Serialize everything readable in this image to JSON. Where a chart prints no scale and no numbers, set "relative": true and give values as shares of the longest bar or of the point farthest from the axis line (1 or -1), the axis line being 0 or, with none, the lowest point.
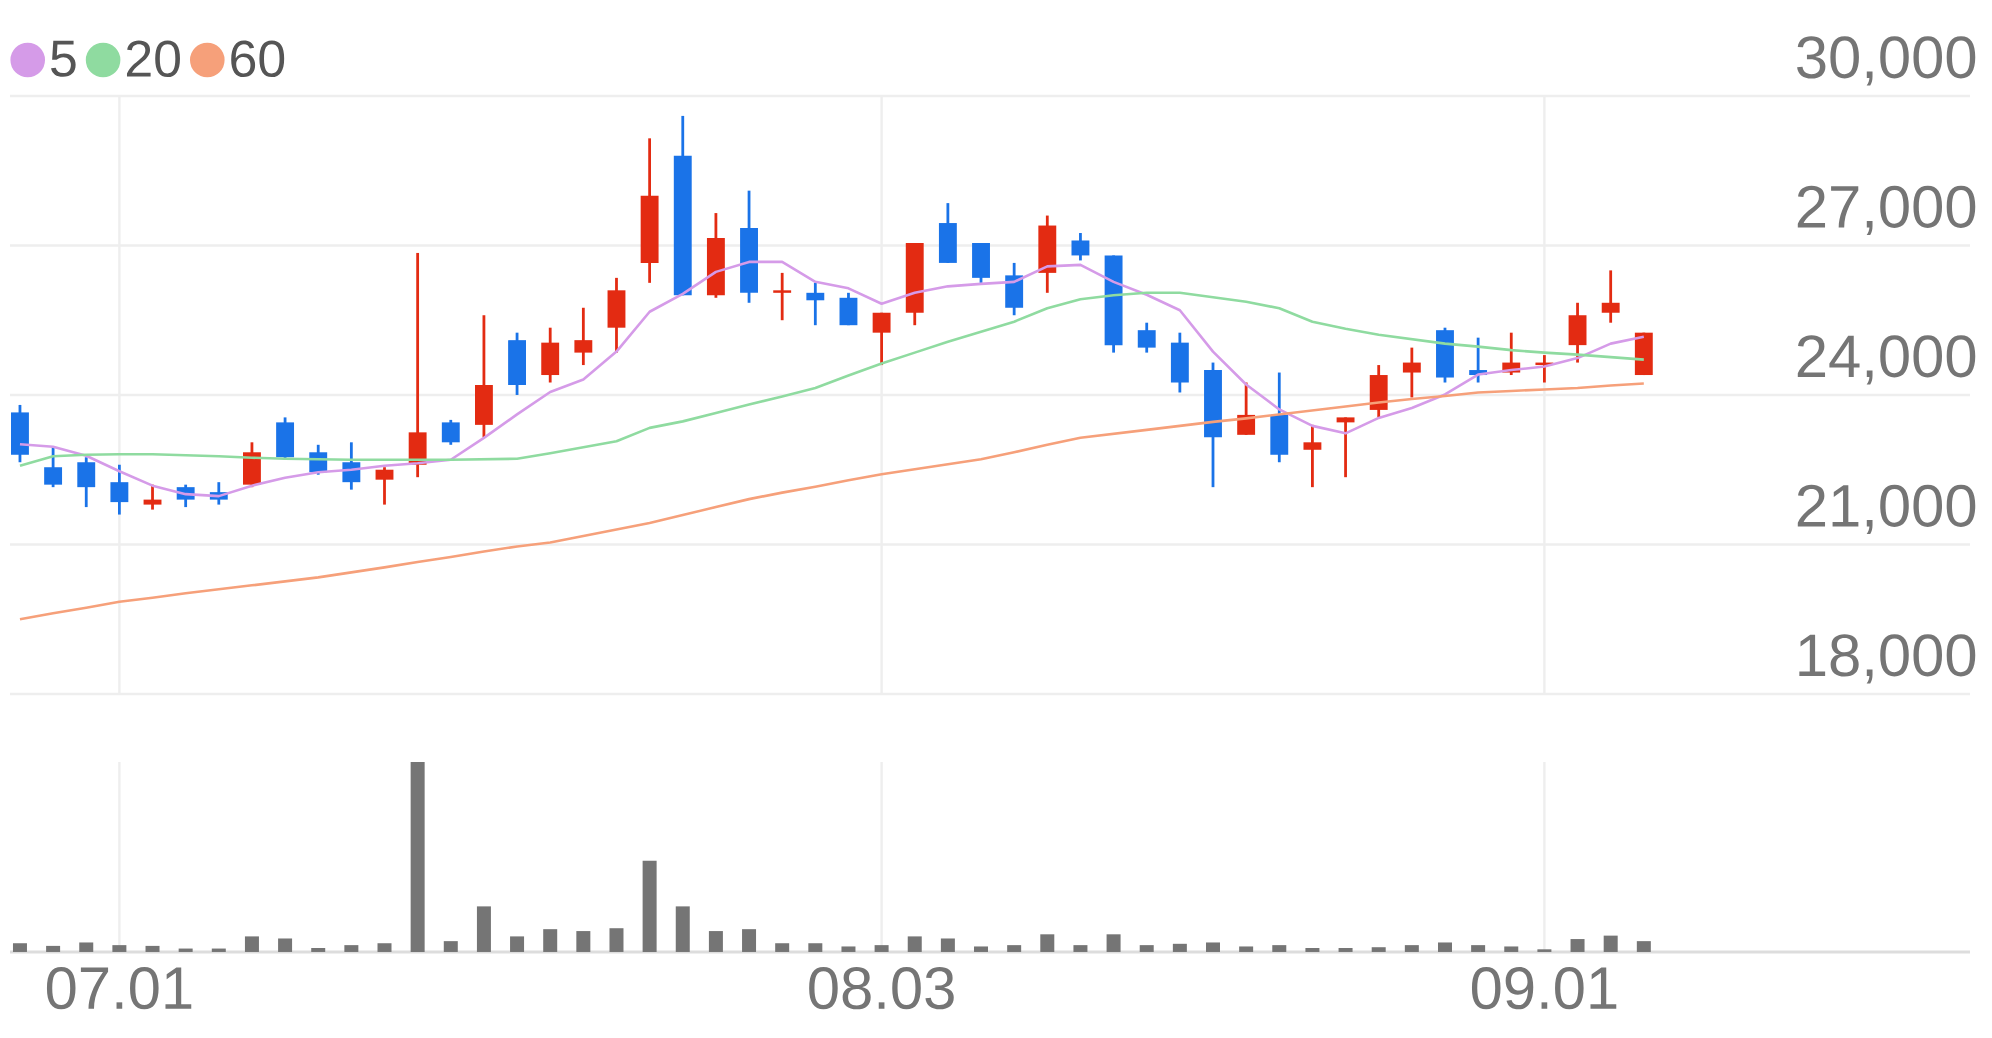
{
  "chart_data": [
    {
      "type": "candlestick",
      "categories": [
        null,
        null,
        null,
        "07.01",
        null,
        null,
        null,
        null,
        null,
        null,
        null,
        null,
        null,
        null,
        null,
        null,
        null,
        null,
        null,
        null,
        null,
        null,
        null,
        null,
        null,
        null,
        "08.03",
        null,
        null,
        null,
        null,
        null,
        null,
        null,
        null,
        null,
        null,
        null,
        null,
        null,
        null,
        null,
        null,
        null,
        null,
        null,
        "09.01",
        null,
        null,
        null
      ],
      "ohlc": [
        [
          23650,
          23800,
          22650,
          22800
        ],
        [
          22550,
          22950,
          22150,
          22200
        ],
        [
          22650,
          22750,
          21750,
          22150
        ],
        [
          22250,
          22600,
          21600,
          21850
        ],
        [
          21800,
          22200,
          21700,
          21900
        ],
        [
          22150,
          22200,
          21750,
          21900
        ],
        [
          22050,
          22250,
          21800,
          21900
        ],
        [
          22200,
          23050,
          22150,
          22850
        ],
        [
          23450,
          23550,
          22700,
          22750
        ],
        [
          22850,
          23000,
          22400,
          22450
        ],
        [
          22650,
          23050,
          22100,
          22250
        ],
        [
          22300,
          22550,
          21800,
          22500
        ],
        [
          22600,
          26850,
          22350,
          23250
        ],
        [
          23450,
          23500,
          23000,
          23050
        ],
        [
          23400,
          25600,
          23150,
          24200
        ],
        [
          25100,
          25250,
          24000,
          24200
        ],
        [
          24400,
          25350,
          24250,
          25050
        ],
        [
          24850,
          25750,
          24600,
          25100
        ],
        [
          25350,
          26350,
          24850,
          26100
        ],
        [
          26650,
          29150,
          26250,
          28000
        ],
        [
          28800,
          29600,
          26000,
          26000
        ],
        [
          26000,
          27650,
          25950,
          27150
        ],
        [
          27350,
          28100,
          25850,
          26050
        ],
        [
          26050,
          26450,
          25500,
          26100
        ],
        [
          26050,
          26250,
          25400,
          25900
        ],
        [
          25950,
          26050,
          25400,
          25400
        ],
        [
          25250,
          25650,
          24600,
          25650
        ],
        [
          25650,
          27050,
          25400,
          27050
        ],
        [
          27450,
          27850,
          26650,
          26650
        ],
        [
          27050,
          27050,
          26250,
          26350
        ],
        [
          26400,
          26650,
          25600,
          25750
        ],
        [
          26450,
          27600,
          26050,
          27400
        ],
        [
          27100,
          27250,
          26700,
          26800
        ],
        [
          26800,
          26800,
          24850,
          25000
        ],
        [
          25300,
          25450,
          24850,
          24950
        ],
        [
          25050,
          25250,
          24050,
          24250
        ],
        [
          24500,
          24650,
          22150,
          23150
        ],
        [
          23200,
          24250,
          23200,
          23600
        ],
        [
          23600,
          24450,
          22650,
          22800
        ],
        [
          22900,
          23400,
          22150,
          23050
        ],
        [
          23450,
          23550,
          22350,
          23550
        ],
        [
          23700,
          24600,
          23550,
          24400
        ],
        [
          24450,
          24950,
          23950,
          24650
        ],
        [
          25300,
          25350,
          24250,
          24350
        ],
        [
          24500,
          25150,
          24250,
          24400
        ],
        [
          24450,
          25250,
          24400,
          24650
        ],
        [
          24600,
          24800,
          24250,
          24650
        ],
        [
          25000,
          25850,
          24650,
          25600
        ],
        [
          25650,
          26500,
          25450,
          25850
        ],
        [
          24400,
          25250,
          24400,
          25250
        ]
      ],
      "colors": [
        "#1a73e8",
        "#1a73e8",
        "#1a73e8",
        "#1a73e8",
        "#e32b12",
        "#1a73e8",
        "#1a73e8",
        "#e32b12",
        "#1a73e8",
        "#1a73e8",
        "#1a73e8",
        "#e32b12",
        "#e32b12",
        "#1a73e8",
        "#e32b12",
        "#1a73e8",
        "#e32b12",
        "#e32b12",
        "#e32b12",
        "#e32b12",
        "#1a73e8",
        "#e32b12",
        "#1a73e8",
        "#e32b12",
        "#1a73e8",
        "#1a73e8",
        "#e32b12",
        "#e32b12",
        "#1a73e8",
        "#1a73e8",
        "#1a73e8",
        "#e32b12",
        "#1a73e8",
        "#1a73e8",
        "#1a73e8",
        "#1a73e8",
        "#1a73e8",
        "#e32b12",
        "#1a73e8",
        "#e32b12",
        "#e32b12",
        "#e32b12",
        "#e32b12",
        "#1a73e8",
        "#1a73e8",
        "#e32b12",
        "#e32b12",
        "#e32b12",
        "#e32b12",
        "#e32b12"
      ],
      "series": [
        {
          "name": "5",
          "type": "line",
          "color": "#d59be8",
          "values": [
            23010,
            22960,
            22780,
            22470,
            22180,
            22010,
            21970,
            22180,
            22340,
            22450,
            22500,
            22580,
            22630,
            22700,
            23140,
            23610,
            24060,
            24310,
            24870,
            25670,
            26030,
            26470,
            26670,
            26670,
            26270,
            26140,
            25830,
            26050,
            26180,
            26230,
            26270,
            26580,
            26610,
            26270,
            26010,
            25700,
            24870,
            24210,
            23710,
            23380,
            23230,
            23540,
            23740,
            24010,
            24410,
            24500,
            24570,
            24740,
            25030,
            25170
          ]
        },
        {
          "name": "20",
          "type": "line",
          "color": "#8fdba0",
          "values": [
            22580,
            22770,
            22800,
            22810,
            22810,
            22790,
            22770,
            22740,
            22720,
            22710,
            22700,
            22700,
            22700,
            22700,
            22710,
            22720,
            22830,
            22950,
            23070,
            23340,
            23470,
            23640,
            23810,
            23970,
            24140,
            24390,
            24630,
            24850,
            25070,
            25270,
            25470,
            25740,
            25920,
            26000,
            26050,
            26050,
            25960,
            25870,
            25740,
            25470,
            25330,
            25210,
            25120,
            25030,
            24970,
            24900,
            24850,
            24810,
            24760,
            24710
          ]
        },
        {
          "name": "60",
          "type": "line",
          "color": "#f6a07a",
          "values": [
            19500,
            19620,
            19730,
            19850,
            19930,
            20020,
            20100,
            20180,
            20260,
            20340,
            20440,
            20540,
            20650,
            20750,
            20860,
            20960,
            21040,
            21170,
            21300,
            21430,
            21590,
            21750,
            21910,
            22040,
            22160,
            22290,
            22410,
            22510,
            22610,
            22710,
            22850,
            23000,
            23140,
            23220,
            23300,
            23380,
            23460,
            23530,
            23610,
            23690,
            23770,
            23850,
            23920,
            23980,
            24050,
            24080,
            24110,
            24140,
            24190,
            24230
          ]
        }
      ],
      "ylim": [
        18000,
        30000
      ],
      "yticks": [
        {
          "value": 18000,
          "label": "18,000"
        },
        {
          "value": 21000,
          "label": "21,000"
        },
        {
          "value": 24000,
          "label": "24,000"
        },
        {
          "value": 27000,
          "label": "27,000"
        },
        {
          "value": 30000,
          "label": "30,000"
        }
      ],
      "grid": true,
      "legend": "top left",
      "tick_labels": "y"
    },
    {
      "type": "bar",
      "relative": true,
      "color": "#757575",
      "categories": [
        null,
        null,
        null,
        "07.01",
        null,
        null,
        null,
        null,
        null,
        null,
        null,
        null,
        null,
        null,
        null,
        null,
        null,
        null,
        null,
        null,
        null,
        null,
        null,
        null,
        null,
        null,
        "08.03",
        null,
        null,
        null,
        null,
        null,
        null,
        null,
        null,
        null,
        null,
        null,
        null,
        null,
        null,
        null,
        null,
        null,
        null,
        null,
        "09.01",
        null,
        null,
        null
      ],
      "values": [
        0.046,
        0.032,
        0.05,
        0.036,
        0.032,
        0.018,
        0.018,
        0.082,
        0.071,
        0.021,
        0.036,
        0.046,
        1,
        0.057,
        0.24,
        0.082,
        0.12,
        0.11,
        0.125,
        0.48,
        0.24,
        0.11,
        0.12,
        0.046,
        0.046,
        0.029,
        0.036,
        0.082,
        0.071,
        0.029,
        0.036,
        0.093,
        0.036,
        0.093,
        0.036,
        0.043,
        0.05,
        0.029,
        0.036,
        0.021,
        0.021,
        0.025,
        0.036,
        0.05,
        0.036,
        0.029,
        0.014,
        0.068,
        0.086,
        0.057
      ],
      "grid": "x",
      "tick_labels": "x"
    }
  ]
}
